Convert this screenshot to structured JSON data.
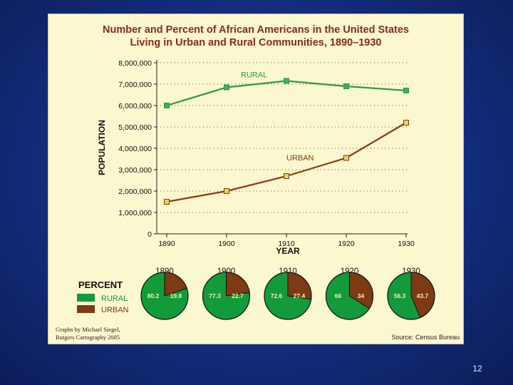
{
  "page_number": "12",
  "chart_data": {
    "type": "line",
    "title": "Number and Percent of African Americans in the United States",
    "subtitle": "Living in Urban and Rural Communities, 1890–1930",
    "xlabel": "YEAR",
    "ylabel": "POPULATION",
    "x": [
      "1890",
      "1900",
      "1910",
      "1920",
      "1930"
    ],
    "ylim": [
      0,
      8000000
    ],
    "yticks": [
      "0",
      "1,000,000",
      "2,000,000",
      "3,000,000",
      "4,000,000",
      "5,000,000",
      "6,000,000",
      "7,000,000",
      "8,000,000"
    ],
    "grid": true,
    "series": [
      {
        "name": "RURAL",
        "color": "#2e9a3e",
        "values": [
          6000000,
          6850000,
          7150000,
          6900000,
          6700000
        ]
      },
      {
        "name": "URBAN",
        "color": "#8b3a12",
        "values": [
          1500000,
          2000000,
          2700000,
          3550000,
          5200000
        ]
      }
    ]
  },
  "pie_data": {
    "type": "pie",
    "legend_title": "PERCENT",
    "legend": [
      {
        "label": "RURAL",
        "color": "#139a3b"
      },
      {
        "label": "URBAN",
        "color": "#7e3a14"
      }
    ],
    "pies": [
      {
        "year": "1890",
        "rural": 80.2,
        "urban": 19.8,
        "rural_label": "80.2",
        "urban_label": "19.8"
      },
      {
        "year": "1900",
        "rural": 77.3,
        "urban": 22.7,
        "rural_label": "77.3",
        "urban_label": "22.7"
      },
      {
        "year": "1910",
        "rural": 72.6,
        "urban": 27.4,
        "rural_label": "72.6",
        "urban_label": "27.4"
      },
      {
        "year": "1920",
        "rural": 66,
        "urban": 34,
        "rural_label": "66",
        "urban_label": "34"
      },
      {
        "year": "1930",
        "rural": 56.3,
        "urban": 43.7,
        "rural_label": "56.3",
        "urban_label": "43.7"
      }
    ]
  },
  "credits": {
    "line1": "Graphs by Michael Siegel,",
    "line2": "Rutgers Cartography 2005",
    "source": "Source: Census Bureau"
  }
}
